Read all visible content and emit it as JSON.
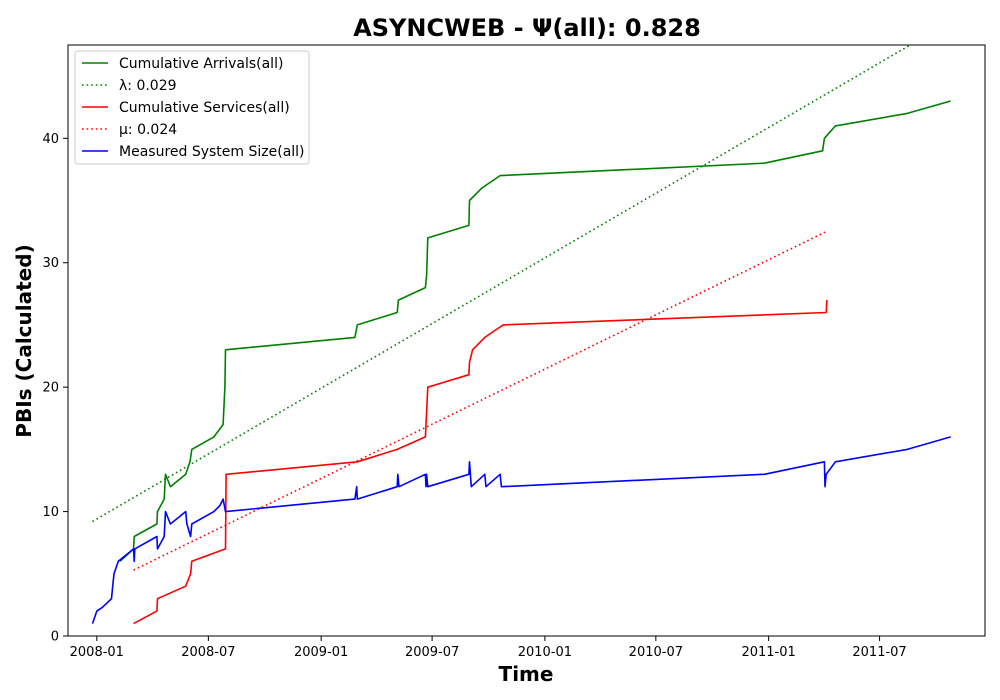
{
  "chart_data": {
    "type": "line",
    "title": "ASYNCWEB -  Ψ(all): 0.828",
    "xlabel": "Time",
    "ylabel": "PBIs (Calculated)",
    "xlim": [
      "2007-11-15",
      "2011-12-20"
    ],
    "ylim": [
      0,
      47.5
    ],
    "x_ticks": [
      "2008-01",
      "2008-07",
      "2009-01",
      "2009-07",
      "2010-01",
      "2010-07",
      "2011-01",
      "2011-07"
    ],
    "y_ticks": [
      0,
      10,
      20,
      30,
      40
    ],
    "grid": false,
    "legend_position": "top-left",
    "legend": [
      "Cumulative Arrivals(all)",
      "λ: 0.029",
      "Cumulative Services(all)",
      "μ: 0.024",
      "Measured System Size(all)"
    ],
    "series": [
      {
        "name": "Cumulative Arrivals(all)",
        "color": "#008000",
        "style": "solid",
        "points": [
          [
            "2008-02-08",
            6
          ],
          [
            "2008-03-01",
            7
          ],
          [
            "2008-03-02",
            8
          ],
          [
            "2008-04-08",
            9
          ],
          [
            "2008-04-09",
            10
          ],
          [
            "2008-04-20",
            11
          ],
          [
            "2008-04-22",
            13
          ],
          [
            "2008-04-30",
            12
          ],
          [
            "2008-05-25",
            13
          ],
          [
            "2008-06-01",
            14
          ],
          [
            "2008-06-04",
            15
          ],
          [
            "2008-07-10",
            16
          ],
          [
            "2008-07-25",
            17
          ],
          [
            "2008-07-27",
            19
          ],
          [
            "2008-07-28",
            20
          ],
          [
            "2008-07-29",
            23
          ],
          [
            "2009-02-25",
            24
          ],
          [
            "2009-03-01",
            25
          ],
          [
            "2009-05-05",
            26
          ],
          [
            "2009-05-07",
            27
          ],
          [
            "2009-06-20",
            28
          ],
          [
            "2009-06-22",
            29
          ],
          [
            "2009-06-24",
            32
          ],
          [
            "2009-08-30",
            33
          ],
          [
            "2009-08-31",
            35
          ],
          [
            "2009-09-20",
            36
          ],
          [
            "2009-10-20",
            37
          ],
          [
            "2010-12-25",
            38
          ],
          [
            "2011-03-30",
            39
          ],
          [
            "2011-04-02",
            40
          ],
          [
            "2011-04-20",
            41
          ],
          [
            "2011-08-15",
            42
          ],
          [
            "2011-10-25",
            43
          ]
        ]
      },
      {
        "name": "λ: 0.029",
        "color": "#008000",
        "style": "dotted",
        "points": [
          [
            "2007-12-25",
            9.2
          ],
          [
            "2011-08-20",
            47.5
          ]
        ]
      },
      {
        "name": "Cumulative Services(all)",
        "color": "#ff0000",
        "style": "solid",
        "points": [
          [
            "2008-03-01",
            1
          ],
          [
            "2008-04-08",
            2
          ],
          [
            "2008-04-09",
            3
          ],
          [
            "2008-05-25",
            4
          ],
          [
            "2008-06-02",
            5
          ],
          [
            "2008-06-04",
            6
          ],
          [
            "2008-07-29",
            7
          ],
          [
            "2008-07-30",
            13
          ],
          [
            "2009-03-01",
            14
          ],
          [
            "2009-05-05",
            15
          ],
          [
            "2009-06-20",
            16
          ],
          [
            "2009-06-21",
            17
          ],
          [
            "2009-06-24",
            20
          ],
          [
            "2009-08-30",
            21
          ],
          [
            "2009-08-31",
            22
          ],
          [
            "2009-09-05",
            23
          ],
          [
            "2009-09-25",
            24
          ],
          [
            "2009-10-25",
            25
          ],
          [
            "2011-04-05",
            26
          ],
          [
            "2011-04-06",
            27
          ]
        ]
      },
      {
        "name": "μ: 0.024",
        "color": "#ff0000",
        "style": "dotted",
        "points": [
          [
            "2008-03-01",
            5.3
          ],
          [
            "2011-04-05",
            32.5
          ]
        ]
      },
      {
        "name": "Measured System Size(all)",
        "color": "#0000ff",
        "style": "solid",
        "points": [
          [
            "2007-12-25",
            1
          ],
          [
            "2008-01-01",
            2
          ],
          [
            "2008-01-10",
            2.3
          ],
          [
            "2008-01-25",
            3
          ],
          [
            "2008-01-27",
            4
          ],
          [
            "2008-01-29",
            5
          ],
          [
            "2008-02-05",
            6
          ],
          [
            "2008-03-01",
            7
          ],
          [
            "2008-03-02",
            6
          ],
          [
            "2008-03-03",
            7
          ],
          [
            "2008-04-08",
            8
          ],
          [
            "2008-04-09",
            7
          ],
          [
            "2008-04-20",
            8
          ],
          [
            "2008-04-22",
            10
          ],
          [
            "2008-04-30",
            9
          ],
          [
            "2008-05-25",
            10
          ],
          [
            "2008-05-27",
            9
          ],
          [
            "2008-06-02",
            8
          ],
          [
            "2008-06-04",
            9
          ],
          [
            "2008-07-10",
            10
          ],
          [
            "2008-07-20",
            10.5
          ],
          [
            "2008-07-25",
            11
          ],
          [
            "2008-07-29",
            10
          ],
          [
            "2009-02-25",
            11
          ],
          [
            "2009-02-28",
            12
          ],
          [
            "2009-03-01",
            11
          ],
          [
            "2009-05-05",
            12
          ],
          [
            "2009-05-06",
            13
          ],
          [
            "2009-05-08",
            12
          ],
          [
            "2009-06-20",
            13
          ],
          [
            "2009-06-21",
            12
          ],
          [
            "2009-06-22",
            13
          ],
          [
            "2009-06-24",
            12
          ],
          [
            "2009-08-30",
            13
          ],
          [
            "2009-08-31",
            14
          ],
          [
            "2009-09-03",
            12
          ],
          [
            "2009-09-25",
            13
          ],
          [
            "2009-09-27",
            12
          ],
          [
            "2009-10-20",
            13
          ],
          [
            "2009-10-22",
            12
          ],
          [
            "2010-12-25",
            13
          ],
          [
            "2011-04-02",
            14
          ],
          [
            "2011-04-03",
            12
          ],
          [
            "2011-04-05",
            13
          ],
          [
            "2011-04-20",
            14
          ],
          [
            "2011-08-15",
            15
          ],
          [
            "2011-10-25",
            16
          ]
        ]
      }
    ]
  }
}
